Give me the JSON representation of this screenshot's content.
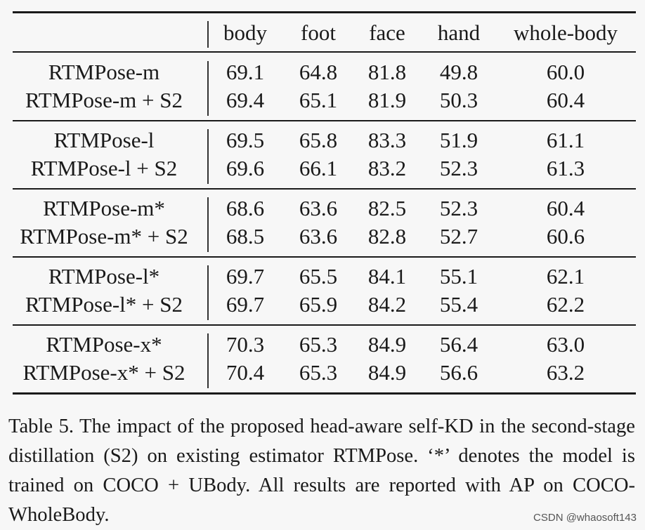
{
  "table": {
    "columns": [
      "body",
      "foot",
      "face",
      "hand",
      "whole-body"
    ],
    "groups": [
      {
        "rows": [
          {
            "method": "RTMPose-m",
            "values": [
              "69.1",
              "64.8",
              "81.8",
              "49.8",
              "60.0"
            ]
          },
          {
            "method": "RTMPose-m + S2",
            "values": [
              "69.4",
              "65.1",
              "81.9",
              "50.3",
              "60.4"
            ]
          }
        ]
      },
      {
        "rows": [
          {
            "method": "RTMPose-l",
            "values": [
              "69.5",
              "65.8",
              "83.3",
              "51.9",
              "61.1"
            ]
          },
          {
            "method": "RTMPose-l + S2",
            "values": [
              "69.6",
              "66.1",
              "83.2",
              "52.3",
              "61.3"
            ]
          }
        ]
      },
      {
        "rows": [
          {
            "method": "RTMPose-m*",
            "values": [
              "68.6",
              "63.6",
              "82.5",
              "52.3",
              "60.4"
            ]
          },
          {
            "method": "RTMPose-m* + S2",
            "values": [
              "68.5",
              "63.6",
              "82.8",
              "52.7",
              "60.6"
            ]
          }
        ]
      },
      {
        "rows": [
          {
            "method": "RTMPose-l*",
            "values": [
              "69.7",
              "65.5",
              "84.1",
              "55.1",
              "62.1"
            ]
          },
          {
            "method": "RTMPose-l* + S2",
            "values": [
              "69.7",
              "65.9",
              "84.2",
              "55.4",
              "62.2"
            ]
          }
        ]
      },
      {
        "rows": [
          {
            "method": "RTMPose-x*",
            "values": [
              "70.3",
              "65.3",
              "84.9",
              "56.4",
              "63.0"
            ]
          },
          {
            "method": "RTMPose-x* + S2",
            "values": [
              "70.4",
              "65.3",
              "84.9",
              "56.6",
              "63.2"
            ]
          }
        ]
      }
    ]
  },
  "caption": "Table 5. The impact of the proposed head-aware self-KD in the second-stage distillation (S2) on existing estimator RTMPose. ‘*’ denotes the model is trained on COCO + UBody. All results are reported with AP on COCO-WholeBody.",
  "watermark": "CSDN @whaosoft143"
}
